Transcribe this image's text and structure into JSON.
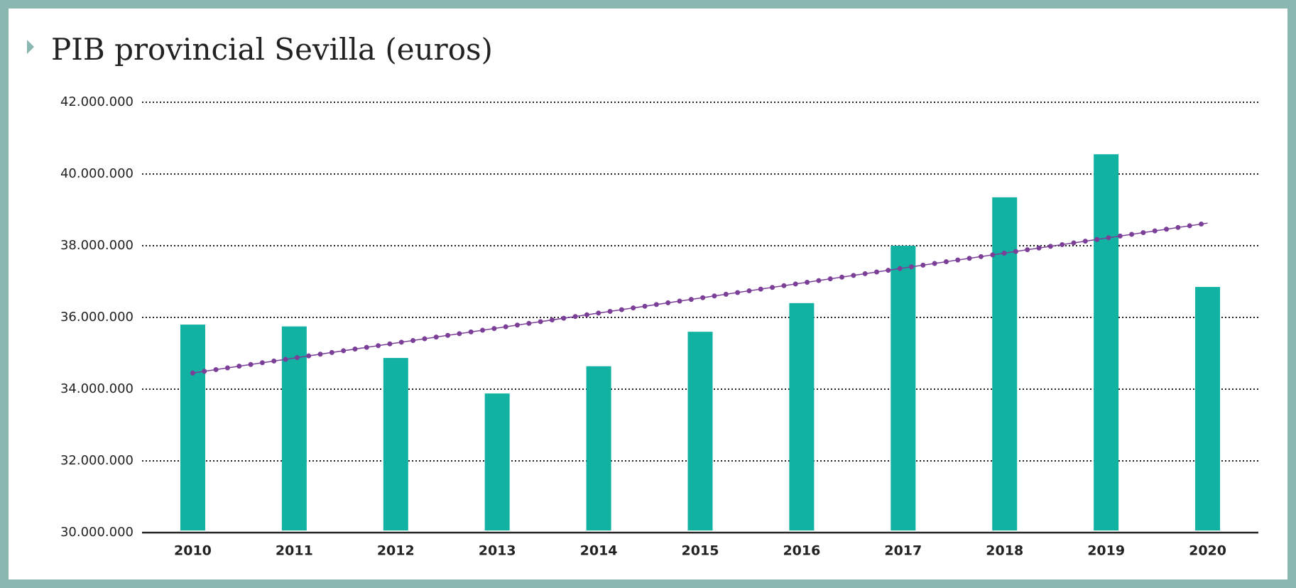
{
  "chart_data": {
    "type": "bar",
    "title": "PIB provincial Sevilla (euros)",
    "categories": [
      "2010",
      "2011",
      "2012",
      "2013",
      "2014",
      "2015",
      "2016",
      "2017",
      "2018",
      "2019",
      "2020"
    ],
    "values": [
      35800000,
      35750000,
      34870000,
      33880000,
      34640000,
      35600000,
      36400000,
      38000000,
      39350000,
      40550000,
      36850000
    ],
    "color": "#12b2a3",
    "trend": {
      "color": "#7b3f98",
      "values": [
        34450000,
        38630000
      ]
    },
    "ylim": [
      30000000,
      42000000
    ],
    "yticks": [
      {
        "value": 30000000,
        "label": "30.000.000"
      },
      {
        "value": 32000000,
        "label": "32.000.000"
      },
      {
        "value": 34000000,
        "label": "34.000.000"
      },
      {
        "value": 36000000,
        "label": "36.000.000"
      },
      {
        "value": 38000000,
        "label": "38.000.000"
      },
      {
        "value": 40000000,
        "label": "40.000.000"
      },
      {
        "value": 42000000,
        "label": "42.000.000"
      }
    ],
    "grid": true
  }
}
